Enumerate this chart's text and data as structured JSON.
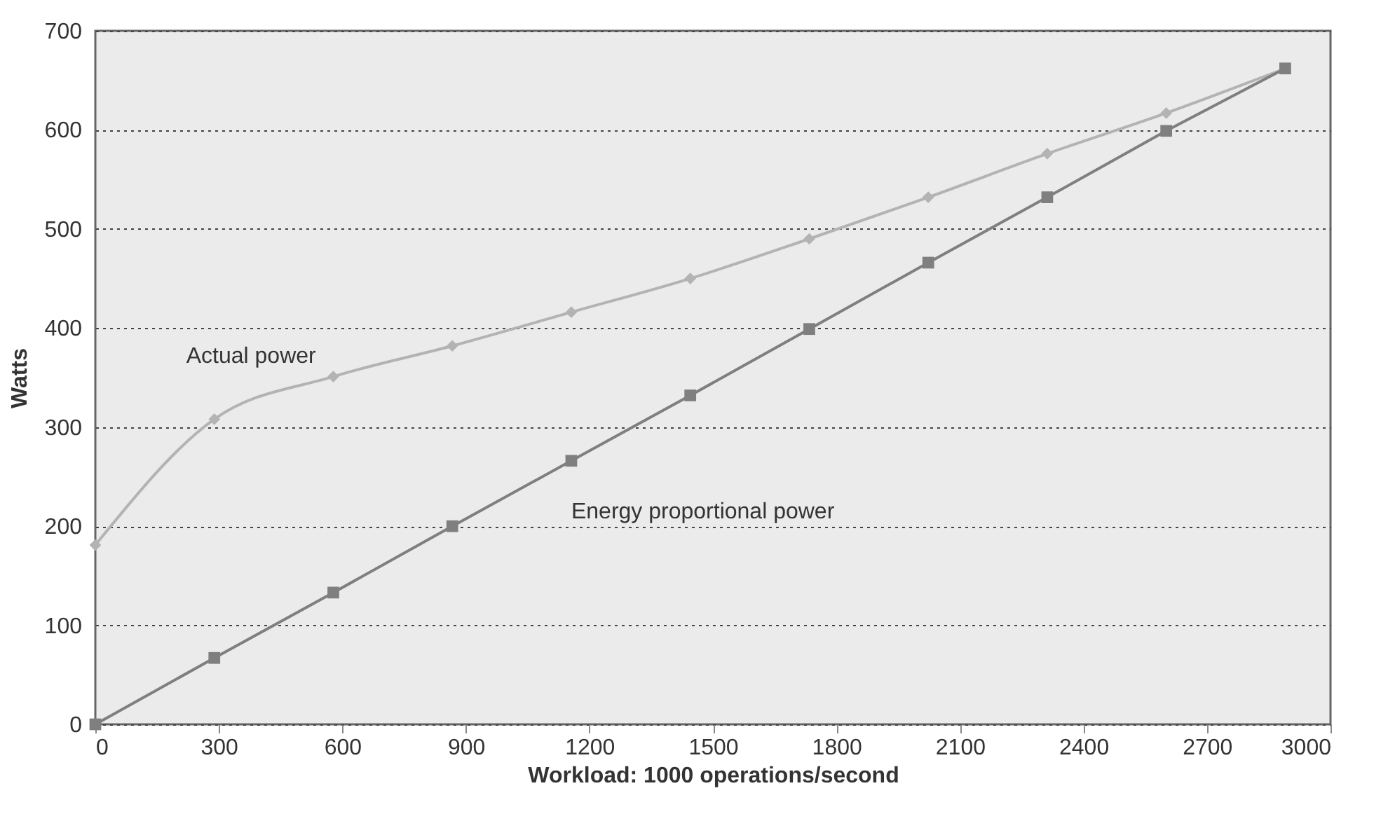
{
  "chart_data": {
    "type": "line",
    "xlabel": "Workload: 1000 operations/second",
    "ylabel": "Watts",
    "x": [
      0,
      289,
      578,
      867,
      1156,
      1445,
      1734,
      2023,
      2312,
      2601,
      2890
    ],
    "series": [
      {
        "name": "Actual power",
        "color": "#b3b3b3",
        "marker": "diamond",
        "values": [
          181,
          308,
          351,
          382,
          416,
          450,
          490,
          532,
          576,
          617,
          662
        ]
      },
      {
        "name": "Energy proportional power",
        "color": "#7f7f7f",
        "marker": "square",
        "values": [
          0,
          67,
          133,
          200,
          266,
          332,
          399,
          466,
          532,
          599,
          662
        ]
      }
    ],
    "xlim": [
      0,
      3000
    ],
    "xticks": [
      0,
      300,
      600,
      900,
      1200,
      1500,
      1800,
      2100,
      2400,
      2700,
      3000
    ],
    "ylim": [
      0,
      700
    ],
    "yticks": [
      0,
      100,
      200,
      300,
      400,
      500,
      600,
      700
    ],
    "grid": "y",
    "line_style": "solid"
  }
}
